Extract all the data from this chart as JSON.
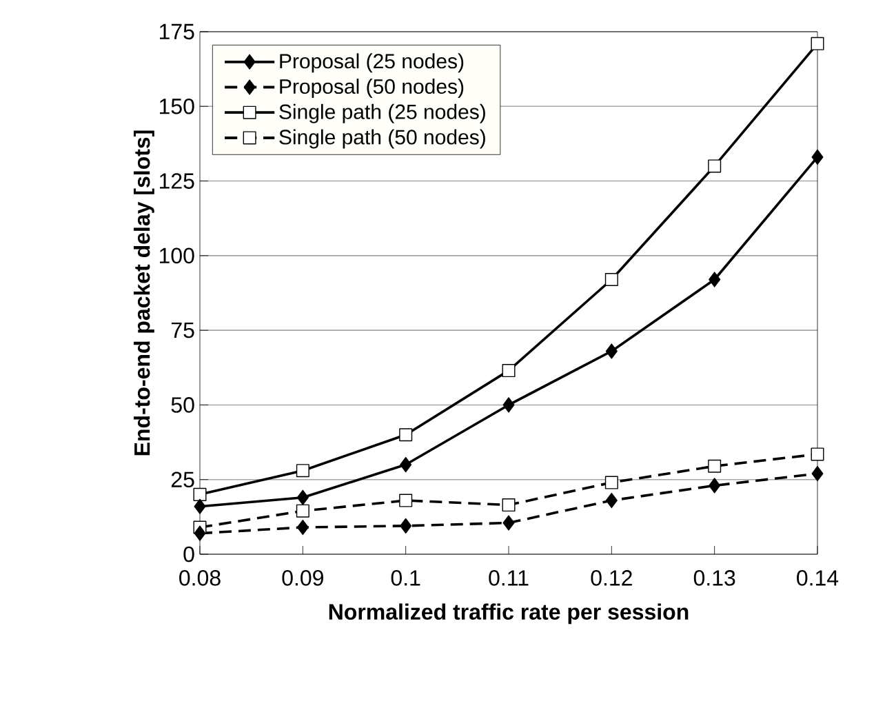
{
  "chart_data": {
    "type": "line",
    "xlabel": "Normalized traffic rate per session",
    "ylabel": "End-to-end packet delay [slots]",
    "x": [
      0.08,
      0.09,
      0.1,
      0.11,
      0.12,
      0.13,
      0.14
    ],
    "series": [
      {
        "name": "Proposal (25 nodes)",
        "color": "#000000",
        "marker": "diamond",
        "line_style": "solid",
        "values": [
          16,
          19,
          30,
          50,
          68,
          92,
          133
        ]
      },
      {
        "name": "Proposal (50 nodes)",
        "color": "#000000",
        "marker": "diamond",
        "line_style": "dashed",
        "values": [
          7,
          9,
          9.5,
          10.5,
          18,
          23,
          27
        ]
      },
      {
        "name": "Single path (25 nodes)",
        "color": "#000000",
        "marker": "square",
        "line_style": "solid",
        "values": [
          20,
          28,
          40,
          61.5,
          92,
          130,
          171
        ]
      },
      {
        "name": "Single path (50 nodes)",
        "color": "#000000",
        "marker": "square",
        "line_style": "dashed",
        "values": [
          9,
          14.5,
          18,
          16.5,
          24,
          29.5,
          33.5
        ]
      }
    ],
    "xlim": [
      0.08,
      0.14
    ],
    "xticks": [
      0.08,
      0.09,
      0.1,
      0.11,
      0.12,
      0.13,
      0.14
    ],
    "ylim": [
      0,
      175
    ],
    "yticks": [
      0,
      25,
      50,
      75,
      100,
      125,
      150,
      175
    ],
    "grid": "y",
    "legend": "top left"
  }
}
